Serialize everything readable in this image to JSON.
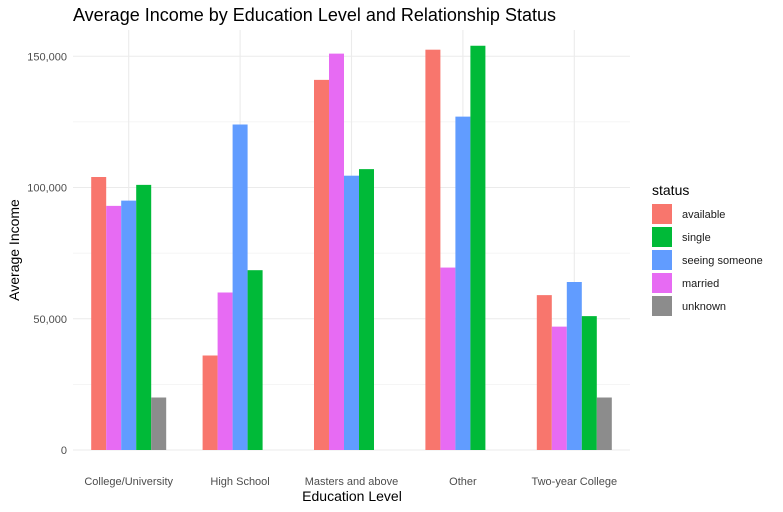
{
  "chart_data": {
    "type": "bar",
    "title": "Average Income by Education Level and Relationship Status",
    "xlabel": "Education Level",
    "ylabel": "Average Income",
    "categories": [
      "College/University",
      "High School",
      "Masters and above",
      "Other",
      "Two-year College"
    ],
    "ylim": [
      0,
      160000
    ],
    "yticks": [
      0,
      50000,
      100000,
      150000
    ],
    "ytick_labels": [
      "0",
      "50,000",
      "100,000",
      "150,000"
    ],
    "grid": true,
    "legend": {
      "title": "status",
      "position": "right"
    },
    "series_order": [
      "available",
      "married",
      "seeing someone",
      "single",
      "unknown"
    ],
    "legend_order": [
      "available",
      "single",
      "seeing someone",
      "married",
      "unknown"
    ],
    "series": [
      {
        "name": "available",
        "color": "#F8766D",
        "values": [
          104000,
          36000,
          141000,
          152500,
          59000
        ]
      },
      {
        "name": "married",
        "color": "#E76BF3",
        "values": [
          93000,
          60000,
          151000,
          69500,
          47000
        ]
      },
      {
        "name": "seeing someone",
        "color": "#619CFF",
        "values": [
          95000,
          124000,
          104500,
          127000,
          64000
        ]
      },
      {
        "name": "single",
        "color": "#00BA38",
        "values": [
          101000,
          68500,
          107000,
          154000,
          51000
        ]
      },
      {
        "name": "unknown",
        "color": "#8C8C8C",
        "values": [
          20000,
          null,
          null,
          null,
          20000
        ]
      }
    ]
  }
}
